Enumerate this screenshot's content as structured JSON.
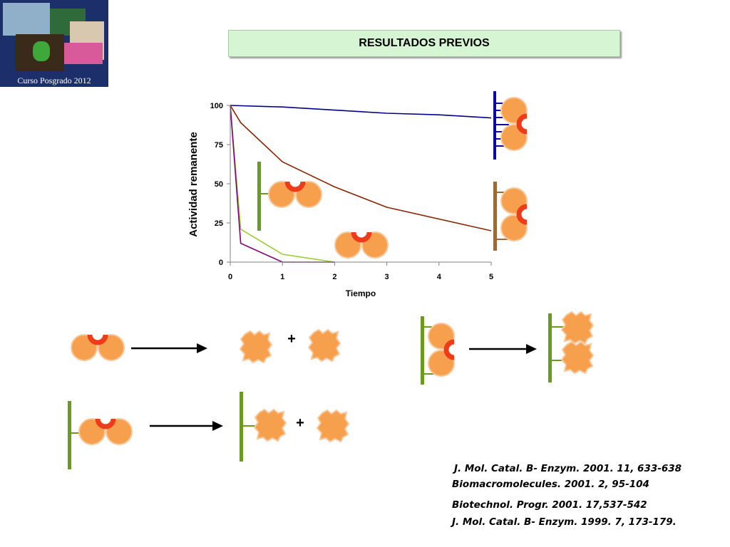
{
  "header": {
    "title": "RESULTADOS  PREVIOS",
    "logo_caption": "Curso Posgrado 2012"
  },
  "chart_data": {
    "type": "line",
    "xlabel": "Tiempo",
    "ylabel": "Actividad remanente",
    "xlim": [
      0,
      5
    ],
    "ylim": [
      0,
      100
    ],
    "xticks": [
      "0",
      "1",
      "2",
      "3",
      "4",
      "5"
    ],
    "yticks": [
      "0",
      "25",
      "50",
      "75",
      "100"
    ],
    "grid": false,
    "series": [
      {
        "color": "#00008b",
        "x": [
          0,
          1,
          2,
          3,
          4,
          5
        ],
        "y": [
          100,
          99,
          97,
          95,
          94,
          92
        ]
      },
      {
        "color": "#8b2500",
        "x": [
          0,
          0.2,
          1,
          2,
          3,
          5
        ],
        "y": [
          100,
          89,
          64,
          48,
          35,
          20
        ]
      },
      {
        "color": "#9acd32",
        "x": [
          0,
          0.2,
          1,
          2
        ],
        "y": [
          100,
          21,
          5,
          0
        ]
      },
      {
        "color": "#800080",
        "x": [
          0,
          0.2,
          1,
          2
        ],
        "y": [
          100,
          12,
          0,
          0
        ]
      }
    ]
  },
  "diagram": {
    "plus_sign": "+",
    "colors": {
      "enzyme": "#f6a04d",
      "active_site": "#ee3b1c",
      "support_green": "#6a9a1f",
      "support_blue": "#0a0aa0",
      "support_brown": "#9a6a3a"
    }
  },
  "references": [
    "J. Mol. Catal. B- Enzym. 2001. 11, 633-638",
    "Biomacromolecules. 2001. 2, 95-104",
    "Biotechnol. Progr. 2001. 17,537-542",
    "J. Mol. Catal. B- Enzym. 1999. 7, 173-179."
  ]
}
